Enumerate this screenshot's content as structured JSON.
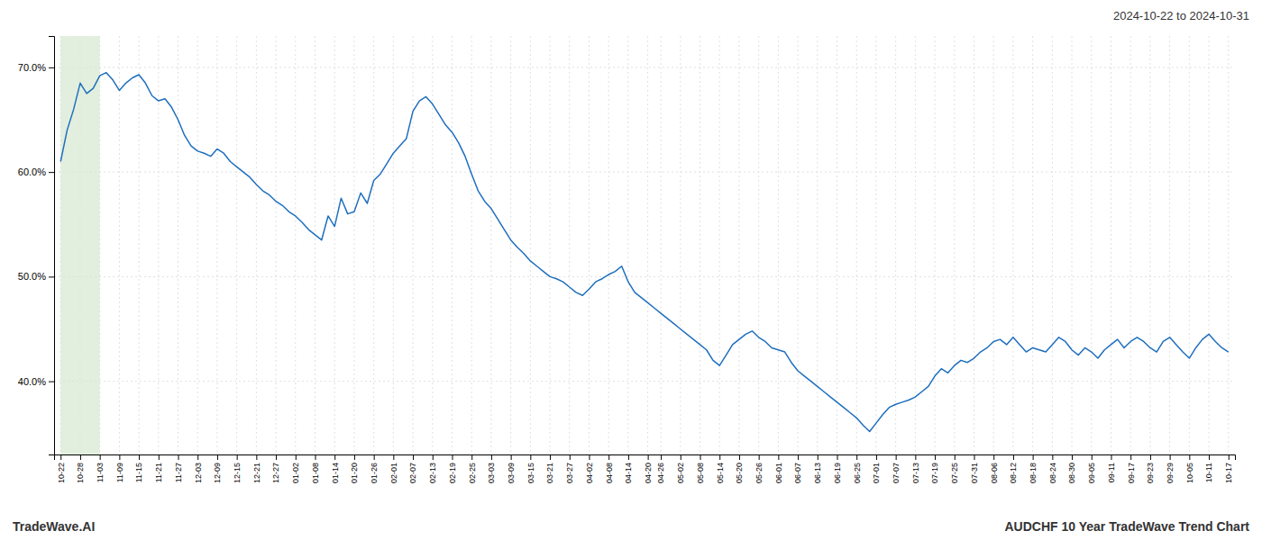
{
  "chart_data": {
    "type": "line",
    "title": "AUDCHF 10 Year TradeWave Trend Chart",
    "subtitle": "2024-10-22 to 2024-10-31",
    "annotations": [
      "TradeWave.AI"
    ],
    "color": "#1f6fbe",
    "grid": true,
    "shaded_range": [
      0,
      6
    ],
    "shaded_color": "#d6e8d0",
    "ylim": [
      0.33,
      0.73
    ],
    "yticks": [
      {
        "value": 0.4,
        "label": "40.0%"
      },
      {
        "value": 0.5,
        "label": "50.0%"
      },
      {
        "value": 0.6,
        "label": "60.0%"
      },
      {
        "value": 0.7,
        "label": "70.0%"
      }
    ],
    "categories": [
      "10-22",
      null,
      null,
      "10-28",
      null,
      null,
      "11-03",
      null,
      null,
      "11-09",
      null,
      null,
      "11-15",
      null,
      null,
      "11-21",
      null,
      null,
      "11-27",
      null,
      null,
      "12-03",
      null,
      null,
      "12-09",
      null,
      null,
      "12-15",
      null,
      null,
      "12-21",
      null,
      null,
      "12-27",
      null,
      null,
      "01-02",
      null,
      null,
      "01-08",
      null,
      null,
      "01-14",
      null,
      null,
      "01-20",
      null,
      null,
      "01-26",
      null,
      null,
      "02-01",
      null,
      null,
      "02-07",
      null,
      null,
      "02-13",
      null,
      null,
      "02-19",
      null,
      null,
      "02-25",
      null,
      null,
      "03-03",
      null,
      null,
      "03-09",
      null,
      null,
      "03-15",
      null,
      null,
      "03-21",
      null,
      null,
      "03-27",
      null,
      null,
      "04-02",
      null,
      null,
      "04-08",
      null,
      null,
      "04-14",
      null,
      null,
      "04-20",
      null,
      "04-26",
      null,
      null,
      "05-02",
      null,
      null,
      "05-08",
      null,
      null,
      "05-14",
      null,
      null,
      "05-20",
      null,
      null,
      "05-26",
      null,
      null,
      "06-01",
      null,
      null,
      "06-07",
      null,
      null,
      "06-13",
      null,
      null,
      "06-19",
      null,
      null,
      "06-25",
      null,
      null,
      "07-01",
      null,
      null,
      "07-07",
      null,
      null,
      "07-13",
      null,
      null,
      "07-19",
      null,
      null,
      "07-25",
      null,
      null,
      "07-31",
      null,
      null,
      "08-06",
      null,
      null,
      "08-12",
      null,
      null,
      "08-18",
      null,
      null,
      "08-24",
      null,
      null,
      "08-30",
      null,
      null,
      "09-05",
      null,
      null,
      "09-11",
      null,
      null,
      "09-17",
      null,
      null,
      "09-23",
      null,
      null,
      "09-29",
      null,
      null,
      "10-05",
      null,
      null,
      "10-11",
      null,
      null,
      "10-17"
    ],
    "values": [
      0.61,
      0.64,
      0.66,
      0.685,
      0.675,
      0.68,
      0.692,
      0.695,
      0.688,
      0.678,
      0.685,
      0.69,
      0.693,
      0.685,
      0.673,
      0.668,
      0.67,
      0.662,
      0.65,
      0.635,
      0.625,
      0.62,
      0.618,
      0.615,
      0.622,
      0.618,
      0.61,
      0.605,
      0.6,
      0.595,
      0.588,
      0.582,
      0.578,
      0.572,
      0.568,
      0.562,
      0.558,
      0.552,
      0.545,
      0.54,
      0.535,
      0.558,
      0.548,
      0.575,
      0.56,
      0.562,
      0.58,
      0.57,
      0.592,
      0.598,
      0.608,
      0.618,
      0.625,
      0.632,
      0.658,
      0.668,
      0.672,
      0.665,
      0.655,
      0.645,
      0.638,
      0.628,
      0.615,
      0.598,
      0.582,
      0.572,
      0.565,
      0.555,
      0.545,
      0.535,
      0.528,
      0.522,
      0.515,
      0.51,
      0.505,
      0.5,
      0.498,
      0.495,
      0.49,
      0.485,
      0.482,
      0.488,
      0.495,
      0.498,
      0.502,
      0.505,
      0.51,
      0.495,
      0.485,
      0.48,
      0.475,
      0.47,
      0.465,
      0.46,
      0.455,
      0.45,
      0.445,
      0.44,
      0.435,
      0.43,
      0.42,
      0.415,
      0.425,
      0.435,
      0.44,
      0.445,
      0.448,
      0.442,
      0.438,
      0.432,
      0.43,
      0.428,
      0.418,
      0.41,
      0.405,
      0.4,
      0.395,
      0.39,
      0.385,
      0.38,
      0.375,
      0.37,
      0.365,
      0.358,
      0.352,
      0.36,
      0.368,
      0.375,
      0.378,
      0.38,
      0.382,
      0.385,
      0.39,
      0.395,
      0.405,
      0.412,
      0.408,
      0.415,
      0.42,
      0.418,
      0.422,
      0.428,
      0.432,
      0.438,
      0.44,
      0.435,
      0.442,
      0.435,
      0.428,
      0.432,
      0.43,
      0.428,
      0.435,
      0.442,
      0.438,
      0.43,
      0.425,
      0.432,
      0.428,
      0.422,
      0.43,
      0.435,
      0.44,
      0.432,
      0.438,
      0.442,
      0.438,
      0.432,
      0.428,
      0.438,
      0.442,
      0.435,
      0.428,
      0.422,
      0.432,
      0.44,
      0.445,
      0.438,
      0.432,
      0.428
    ]
  }
}
